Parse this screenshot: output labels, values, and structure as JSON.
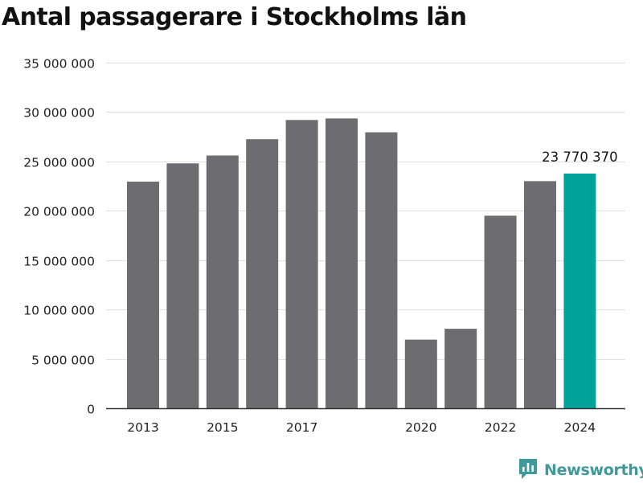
{
  "page": {
    "title": "Antal passagerare i Stockholms län"
  },
  "brand": {
    "name": "Newsworthy",
    "icon": "newsworthy-logo-icon",
    "color": "#3e9a9a"
  },
  "colors": {
    "bar": "#6d6c70",
    "highlight": "#00a29a",
    "grid": "#dedede",
    "axis": "#333333",
    "text": "#222222"
  },
  "chart_data": {
    "type": "bar",
    "title": "Antal passagerare i Stockholms län",
    "xlabel": "",
    "ylabel": "",
    "categories": [
      "2013",
      "2014",
      "2015",
      "2016",
      "2017",
      "2018",
      "2019",
      "2020",
      "2021",
      "2022",
      "2023",
      "2024"
    ],
    "x_tick_labels": [
      "2013",
      "",
      "2015",
      "",
      "2017",
      "",
      "",
      "2020",
      "",
      "2022",
      "",
      "2024"
    ],
    "values": [
      22950000,
      24800000,
      25600000,
      27250000,
      29200000,
      29350000,
      27950000,
      6950000,
      8050000,
      19500000,
      23000000,
      23770370
    ],
    "ylim": [
      0,
      35000000
    ],
    "y_ticks": [
      0,
      5000000,
      10000000,
      15000000,
      20000000,
      25000000,
      30000000,
      35000000
    ],
    "y_tick_labels": [
      "0",
      "5 000 000",
      "10 000 000",
      "15 000 000",
      "20 000 000",
      "25 000 000",
      "30 000 000",
      "35 000 000"
    ],
    "grid": true,
    "legend": "none",
    "highlight_index": 11,
    "annotations": [
      {
        "index": 11,
        "text": "23 770 370"
      }
    ]
  }
}
